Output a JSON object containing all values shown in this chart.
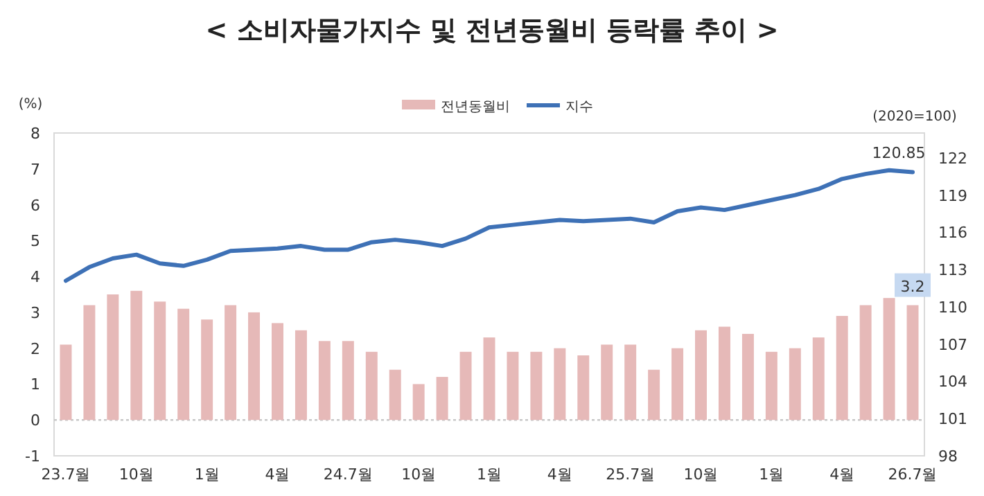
{
  "chart_data": {
    "type": "bar",
    "title": "< 소비자물가지수 및 전년동월비 등락률 추이 >",
    "ylabel": "(%)",
    "y2label": "(2020=100)",
    "categories": [
      "23.7월",
      null,
      null,
      "10월",
      null,
      null,
      "1월",
      null,
      null,
      "4월",
      null,
      null,
      "24.7월",
      null,
      null,
      "10월",
      null,
      null,
      "1월",
      null,
      null,
      "4월",
      null,
      null,
      "25.7월",
      null,
      null,
      "10월",
      null,
      null,
      "1월",
      null,
      null,
      "4월",
      null,
      null,
      "26.7월"
    ],
    "series": [
      {
        "name": "전년동월비",
        "color": "#e6b9b8",
        "values": [
          2.1,
          3.2,
          3.5,
          3.6,
          3.3,
          3.1,
          2.8,
          3.2,
          3.0,
          2.7,
          2.5,
          2.2,
          2.2,
          1.9,
          1.4,
          1.0,
          1.2,
          1.9,
          2.3,
          1.9,
          1.9,
          2.0,
          1.8,
          2.1,
          2.1,
          1.4,
          2.0,
          2.5,
          2.6,
          2.4,
          1.9,
          2.0,
          2.3,
          2.9,
          3.2,
          3.4,
          3.2
        ],
        "value_labels": [
          null,
          null,
          null,
          null,
          null,
          null,
          null,
          null,
          null,
          null,
          null,
          null,
          null,
          null,
          null,
          null,
          null,
          null,
          null,
          null,
          null,
          null,
          null,
          null,
          null,
          null,
          null,
          null,
          null,
          null,
          null,
          null,
          null,
          null,
          null,
          null,
          "3.2"
        ]
      },
      {
        "name": "지수",
        "type": "line",
        "axis": "y2",
        "color": "#3e71b6",
        "values": [
          112.1,
          113.2,
          113.9,
          114.2,
          113.5,
          113.3,
          113.8,
          114.5,
          114.6,
          114.7,
          114.9,
          114.6,
          114.6,
          115.2,
          115.4,
          115.2,
          114.9,
          115.5,
          116.4,
          116.6,
          116.8,
          117.0,
          116.9,
          117.0,
          117.1,
          116.8,
          117.7,
          118.0,
          117.8,
          118.2,
          118.6,
          119.0,
          119.5,
          120.3,
          120.7,
          121.0,
          120.85
        ],
        "value_labels": [
          null,
          null,
          null,
          null,
          null,
          null,
          null,
          null,
          null,
          null,
          null,
          null,
          null,
          null,
          null,
          null,
          null,
          null,
          null,
          null,
          null,
          null,
          null,
          null,
          null,
          null,
          null,
          null,
          null,
          null,
          null,
          null,
          null,
          null,
          null,
          null,
          "120.85"
        ]
      }
    ],
    "ylim": [
      -1,
      8
    ],
    "yticks": [
      {
        "value": -1,
        "label": "-1"
      },
      0,
      1,
      2,
      3,
      4,
      5,
      6,
      7,
      8
    ],
    "y2lim": [
      98,
      124
    ],
    "y2ticks": [
      98,
      101,
      104,
      107,
      110,
      113,
      116,
      119,
      122
    ],
    "ref_lines": [
      {
        "axis": "y",
        "value": 0,
        "color": "#c8c8c8",
        "line_style": "dotted"
      }
    ],
    "legend": "top",
    "grid": false
  }
}
